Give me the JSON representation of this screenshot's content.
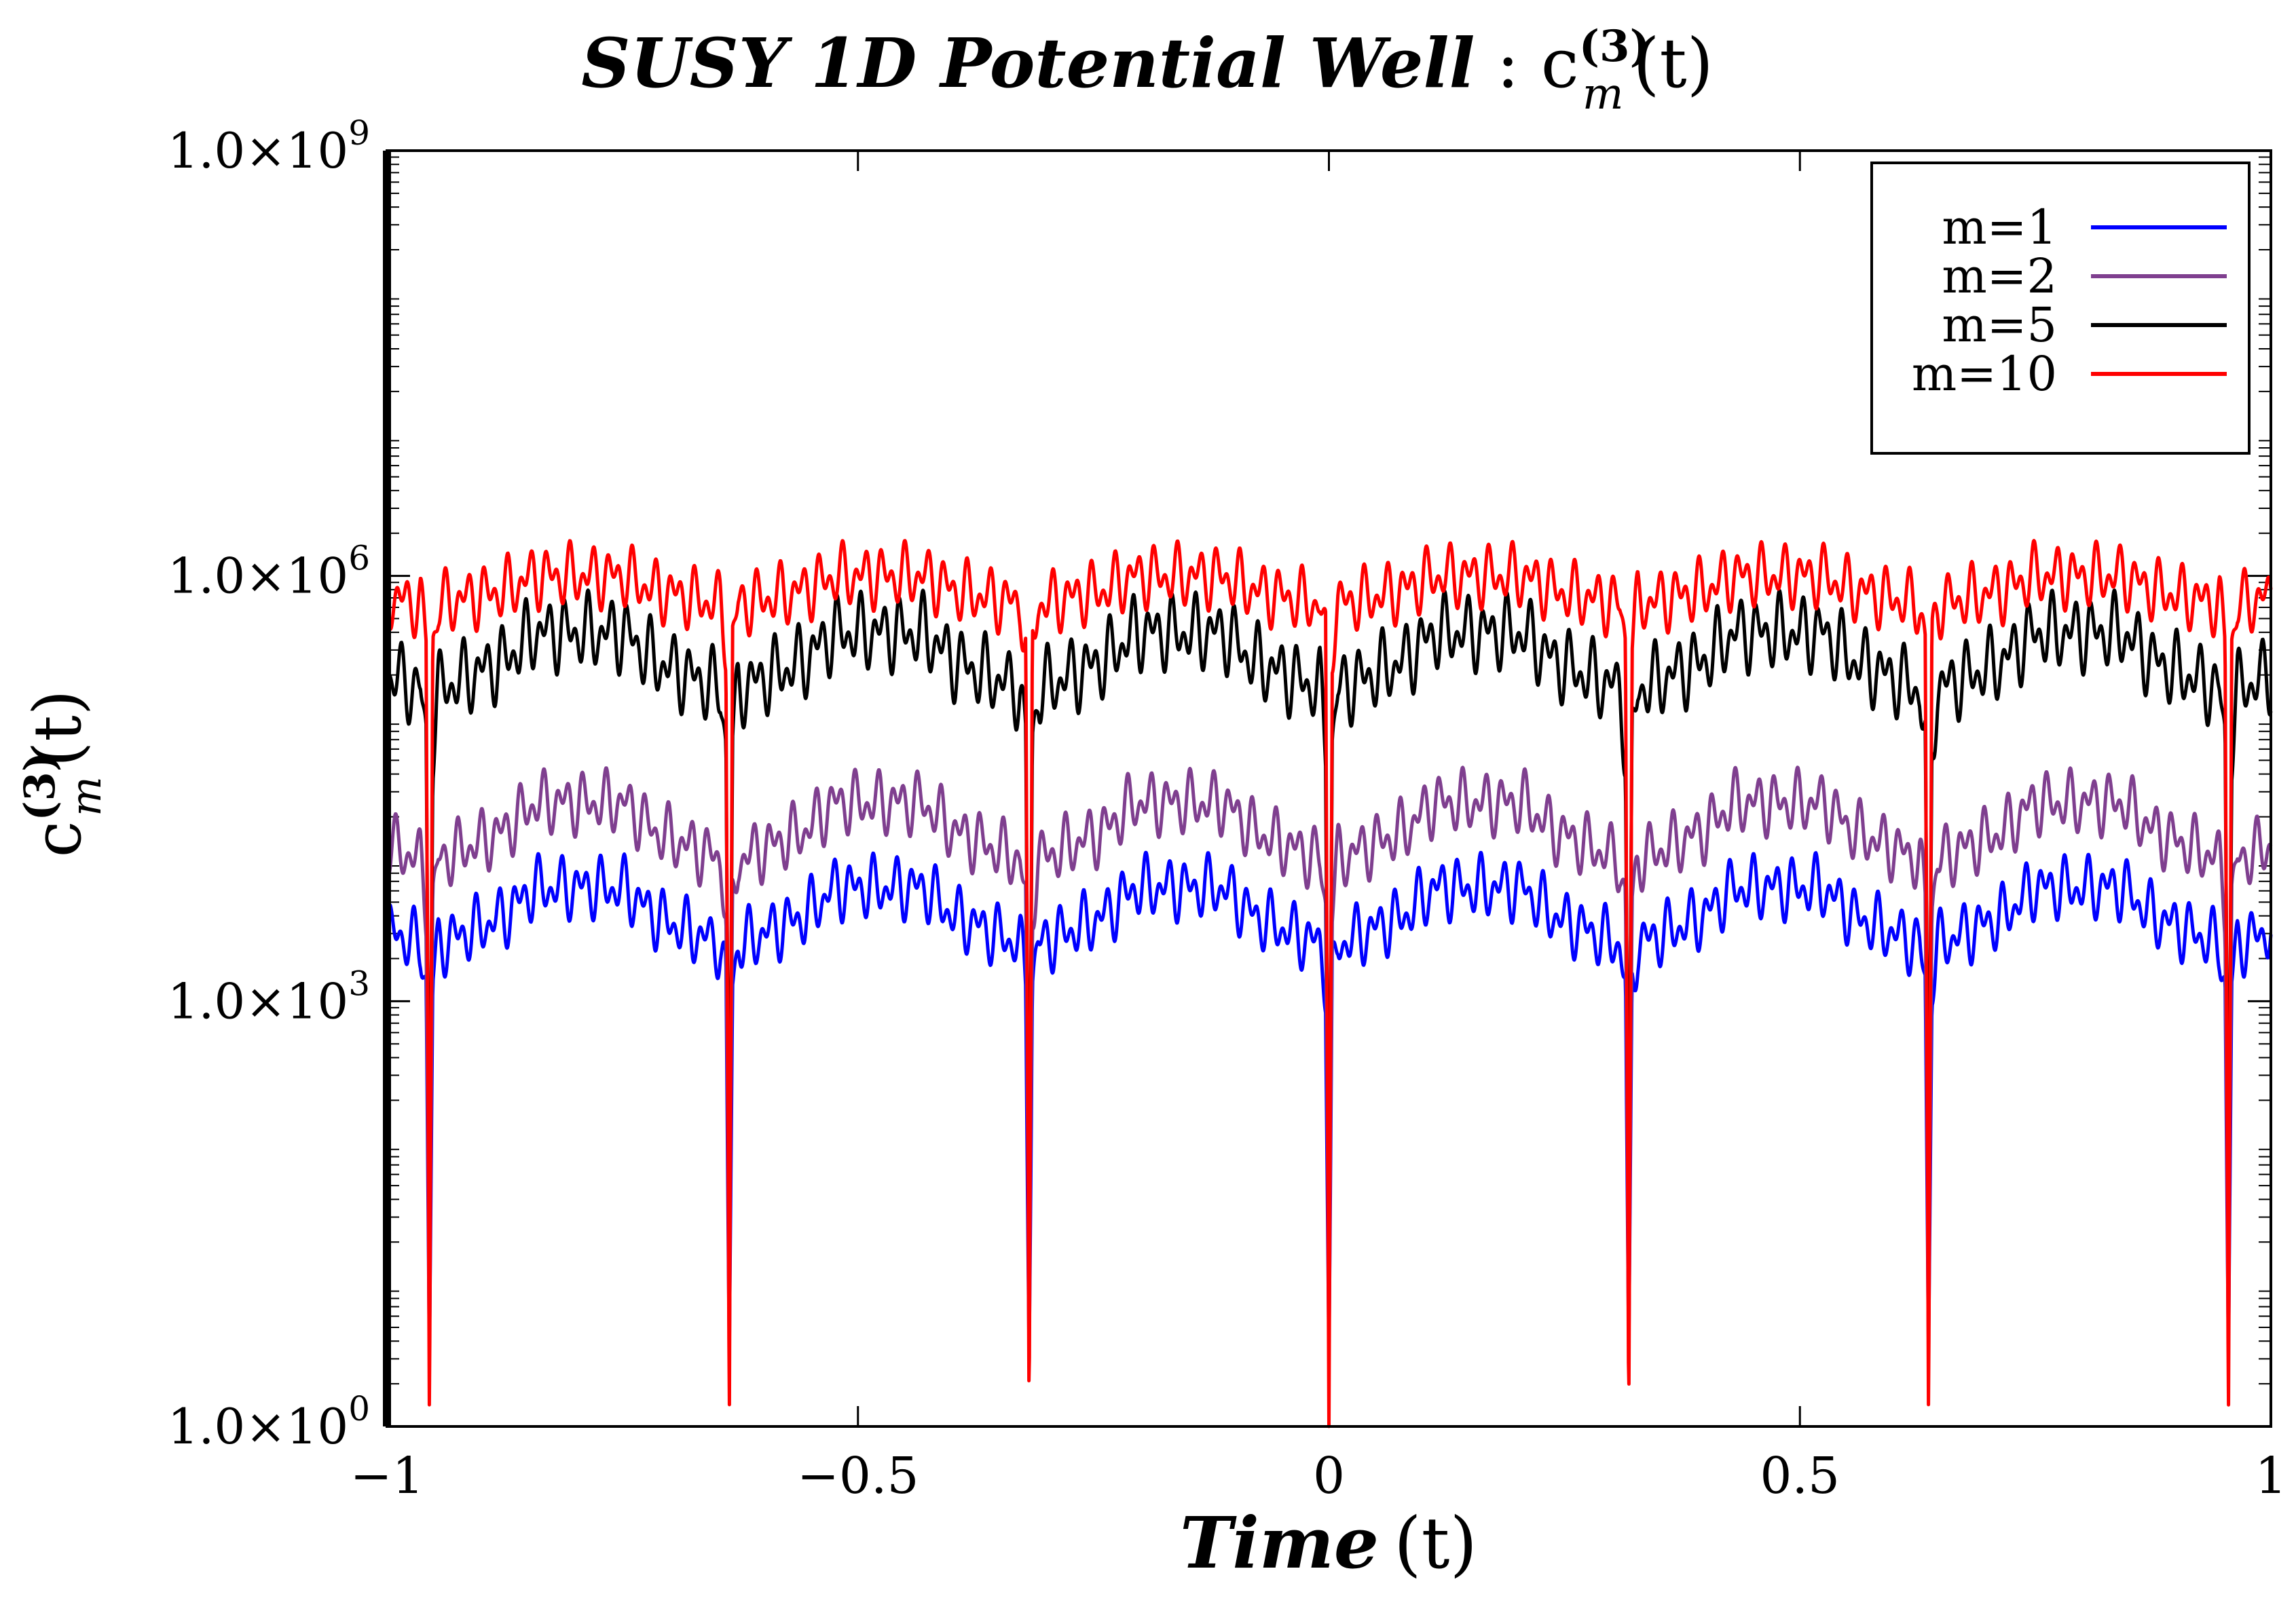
{
  "chart_data": {
    "type": "line",
    "title_main": "SUSY 1D Potential Well",
    "title_sep": " : ",
    "title_func": "c",
    "title_sup": "(3)",
    "title_sub": "m",
    "title_arg": "(t)",
    "xlabel_main": "Time",
    "xlabel_arg": "(t)",
    "ylabel_func": "c",
    "ylabel_sup": "(3)",
    "ylabel_sub": "m",
    "ylabel_arg": "(t)",
    "xlim": [
      -1,
      1
    ],
    "y_log_exponent_range": [
      0,
      9
    ],
    "y_scale": "log10",
    "grid": false,
    "legend_position": "top-right",
    "x_ticks": [
      {
        "value": -1,
        "label": "−1"
      },
      {
        "value": -0.5,
        "label": "−0.5"
      },
      {
        "value": 0,
        "label": "0"
      },
      {
        "value": 0.5,
        "label": "0.5"
      },
      {
        "value": 1,
        "label": "1"
      }
    ],
    "y_ticks": [
      {
        "exp": 0,
        "base": "1.0×10",
        "sup": "0"
      },
      {
        "exp": 3,
        "base": "1.0×10",
        "sup": "3"
      },
      {
        "exp": 6,
        "base": "1.0×10",
        "sup": "6"
      },
      {
        "exp": 9,
        "base": "1.0×10",
        "sup": "9"
      }
    ],
    "period": 0.3183,
    "series": [
      {
        "name": "m=1",
        "color": "#0000ff",
        "plateau_log10": 3.8,
        "mid_log10": 3.4,
        "low_log10": 3.0,
        "amplitude": 0.25,
        "spike_min_log10": 0.5,
        "spike_min_at_period": 0.9
      },
      {
        "name": "m=2",
        "color": "#7f3f8f",
        "plateau_log10": 4.4,
        "mid_log10": 4.0,
        "low_log10": 3.5,
        "amplitude": 0.25,
        "spike_min_log10": 0.8,
        "spike_min_at_period": 1.7
      },
      {
        "name": "m=5",
        "color": "#000000",
        "plateau_log10": 5.6,
        "mid_log10": 5.2,
        "low_log10": 4.6,
        "amplitude": 0.3,
        "spike_min_log10": 1.5,
        "spike_min_at_period": 2.7
      },
      {
        "name": "m=10",
        "color": "#ff0000",
        "plateau_log10": 6.0,
        "mid_log10": 5.8,
        "low_log10": 5.4,
        "amplitude": 0.25,
        "spike_min_log10": 0.0,
        "spike_min_at_period": 5.5
      }
    ]
  }
}
